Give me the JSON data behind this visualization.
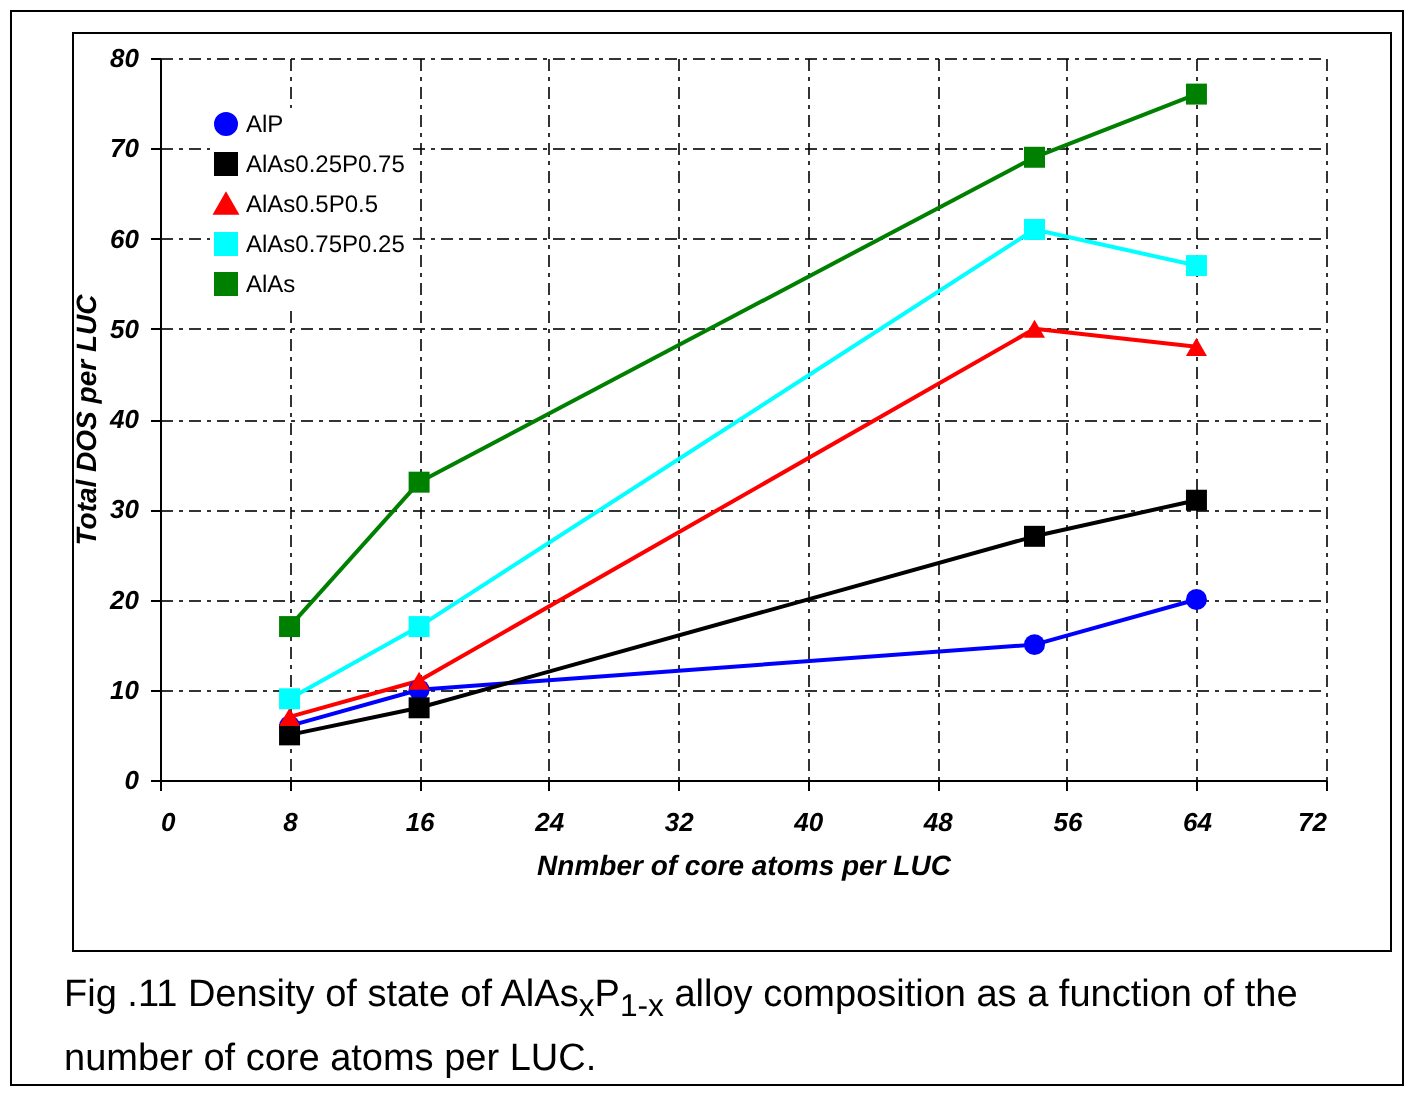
{
  "chart_data": {
    "type": "line",
    "xlabel": "Nnmber of core atoms per LUC",
    "ylabel": "Total  DOS per LUC",
    "x": [
      8,
      16,
      54,
      64
    ],
    "series": [
      {
        "name": "AlP",
        "color": "#0000ff",
        "marker": "circle",
        "values": [
          6,
          10,
          15,
          20
        ]
      },
      {
        "name": "AlAs0.25P0.75",
        "color": "#000000",
        "marker": "square",
        "values": [
          5,
          8,
          27,
          31
        ]
      },
      {
        "name": "AlAs0.5P0.5",
        "color": "#ff0000",
        "marker": "triangle",
        "values": [
          7,
          11,
          50,
          48
        ]
      },
      {
        "name": "AlAs0.75P0.25",
        "color": "#00ffff",
        "marker": "square",
        "values": [
          9,
          17,
          61,
          57
        ]
      },
      {
        "name": "AlAs",
        "color": "#008000",
        "marker": "square",
        "values": [
          17,
          33,
          69,
          76
        ]
      }
    ],
    "xlim": [
      0,
      72
    ],
    "xticks": [
      0,
      8,
      16,
      24,
      32,
      40,
      48,
      56,
      64,
      72
    ],
    "ylim": [
      0,
      80
    ],
    "yticks": [
      0,
      10,
      20,
      30,
      40,
      50,
      60,
      70,
      80
    ],
    "grid": true,
    "legend": "top left",
    "line_style": "solid",
    "annotations": [
      "Fig .11  Density of state of AlAs$_{x}$P$_{1-x}$ alloy composition as a function of the number of core atoms per LUC."
    ]
  }
}
